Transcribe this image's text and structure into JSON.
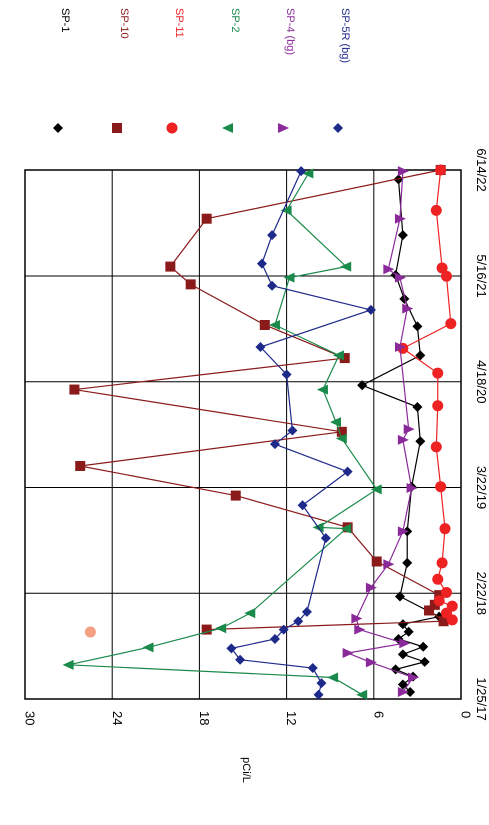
{
  "chart_data": {
    "type": "scatter",
    "orientation": "rotated-90-clockwise",
    "title": "",
    "xlabel": "",
    "ylabel": "pCi/L",
    "ylim": [
      0,
      30
    ],
    "y_ticks": [
      0,
      6,
      12,
      18,
      24,
      30
    ],
    "y_tick_labels": [
      "0",
      "6",
      "12",
      "18",
      "24",
      "30"
    ],
    "x_ticks": [
      "2017-01-25",
      "2018-02-22",
      "2019-03-22",
      "2020-04-18",
      "2021-05-16",
      "2022-06-14"
    ],
    "x_tick_labels": [
      "1/25/17",
      "2/22/18",
      "3/22/19",
      "4/18/20",
      "5/16/21",
      "6/14/22"
    ],
    "xlim": [
      "2017-01-25",
      "2022-06-14"
    ],
    "grid": true,
    "legend_position": "top",
    "series": [
      {
        "name": "SP-1",
        "color": "#000000",
        "marker": "diamond",
        "connected": true,
        "points": [
          [
            "2017-02-20",
            3.5
          ],
          [
            "2017-03-20",
            4.0
          ],
          [
            "2017-04-18",
            3.3
          ],
          [
            "2017-05-15",
            4.5
          ],
          [
            "2017-06-12",
            2.5
          ],
          [
            "2017-07-10",
            4.0
          ],
          [
            "2017-08-07",
            2.6
          ],
          [
            "2017-09-05",
            4.3
          ],
          [
            "2017-10-02",
            3.6
          ],
          [
            "2017-10-30",
            4.0
          ],
          [
            "2017-11-27",
            1.5
          ],
          [
            "2018-02-10",
            4.2
          ],
          [
            "2018-06-15",
            3.7
          ],
          [
            "2018-10-10",
            3.7
          ],
          [
            "2019-03-25",
            3.4
          ],
          [
            "2019-09-10",
            2.8
          ],
          [
            "2020-01-15",
            3.0
          ],
          [
            "2020-04-05",
            6.8
          ],
          [
            "2020-07-25",
            2.8
          ],
          [
            "2020-11-10",
            3.0
          ],
          [
            "2021-02-20",
            3.9
          ],
          [
            "2021-05-20",
            4.5
          ],
          [
            "2021-10-15",
            4.0
          ],
          [
            "2022-05-10",
            4.3
          ]
        ]
      },
      {
        "name": "SP-10",
        "color": "#8b1a1a",
        "marker": "square",
        "connected": true,
        "points": [
          [
            "2017-10-10",
            17.5
          ],
          [
            "2017-11-10",
            1.2
          ],
          [
            "2017-12-20",
            2.2
          ],
          [
            "2018-01-10",
            1.8
          ],
          [
            "2018-02-15",
            1.5
          ],
          [
            "2018-06-20",
            5.8
          ],
          [
            "2018-10-25",
            7.8
          ],
          [
            "2019-02-20",
            15.5
          ],
          [
            "2019-06-10",
            26.2
          ],
          [
            "2019-10-15",
            8.2
          ],
          [
            "2020-03-20",
            26.6
          ],
          [
            "2020-07-15",
            8.0
          ],
          [
            "2020-11-15",
            13.5
          ],
          [
            "2021-04-15",
            18.6
          ],
          [
            "2021-06-20",
            20.0
          ],
          [
            "2021-12-15",
            17.5
          ],
          [
            "2022-06-14",
            1.4
          ]
        ]
      },
      {
        "name": "SP-11",
        "color": "#ee2222",
        "marker": "circle",
        "connected": true,
        "points": [
          [
            "2017-11-15",
            0.6
          ],
          [
            "2017-12-10",
            1.0
          ],
          [
            "2018-01-05",
            0.6
          ],
          [
            "2018-01-25",
            1.5
          ],
          [
            "2018-02-25",
            1.0
          ],
          [
            "2018-04-15",
            1.6
          ],
          [
            "2018-06-15",
            1.3
          ],
          [
            "2018-10-20",
            1.1
          ],
          [
            "2019-03-25",
            1.4
          ],
          [
            "2019-08-20",
            1.7
          ],
          [
            "2020-01-20",
            1.6
          ],
          [
            "2020-05-20",
            1.6
          ],
          [
            "2020-08-20",
            4.0
          ],
          [
            "2020-11-20",
            0.7
          ],
          [
            "2021-05-15",
            1.0
          ],
          [
            "2021-06-15",
            1.3
          ],
          [
            "2022-01-15",
            1.7
          ],
          [
            "2022-06-14",
            1.4
          ]
        ]
      },
      {
        "name": "SP-2",
        "color": "#1a8a4a",
        "marker": "triangle-left",
        "connected": true,
        "points": [
          [
            "2017-02-10",
            6.8
          ],
          [
            "2017-04-15",
            8.8
          ],
          [
            "2017-06-01",
            27.0
          ],
          [
            "2017-08-05",
            21.5
          ],
          [
            "2017-10-15",
            16.5
          ],
          [
            "2017-12-10",
            14.5
          ],
          [
            "2018-10-20",
            7.9
          ],
          [
            "2018-10-25",
            9.8
          ],
          [
            "2019-03-15",
            5.8
          ],
          [
            "2019-09-20",
            8.2
          ],
          [
            "2019-11-20",
            8.6
          ],
          [
            "2020-03-20",
            9.5
          ],
          [
            "2020-07-25",
            8.4
          ],
          [
            "2020-11-15",
            12.8
          ],
          [
            "2021-05-10",
            11.8
          ],
          [
            "2021-06-20",
            7.9
          ],
          [
            "2022-01-15",
            12.0
          ],
          [
            "2022-06-01",
            10.5
          ]
        ]
      },
      {
        "name": "SP-4 (bg)",
        "color": "#8a2a9a",
        "marker": "triangle-right",
        "connected": true,
        "points": [
          [
            "2017-02-20",
            4.0
          ],
          [
            "2017-04-15",
            3.3
          ],
          [
            "2017-06-10",
            6.2
          ],
          [
            "2017-07-15",
            7.8
          ],
          [
            "2017-08-20",
            3.9
          ],
          [
            "2017-10-10",
            7.0
          ],
          [
            "2017-11-20",
            7.2
          ],
          [
            "2018-03-15",
            6.2
          ],
          [
            "2018-06-10",
            5.0
          ],
          [
            "2018-10-10",
            4.0
          ],
          [
            "2019-03-20",
            3.4
          ],
          [
            "2019-09-15",
            4.0
          ],
          [
            "2019-10-25",
            3.6
          ],
          [
            "2020-08-25",
            4.2
          ],
          [
            "2021-01-15",
            3.7
          ],
          [
            "2021-05-10",
            4.2
          ],
          [
            "2021-06-10",
            5.0
          ],
          [
            "2021-12-15",
            4.2
          ],
          [
            "2022-06-10",
            4.0
          ]
        ]
      },
      {
        "name": "SP-5R (bg)",
        "color": "#1e2a8a",
        "marker": "diamond",
        "connected": true,
        "points": [
          [
            "2017-02-10",
            9.8
          ],
          [
            "2017-03-25",
            9.6
          ],
          [
            "2017-05-20",
            10.2
          ],
          [
            "2017-06-20",
            15.2
          ],
          [
            "2017-08-01",
            15.8
          ],
          [
            "2017-09-05",
            12.8
          ],
          [
            "2017-10-10",
            12.2
          ],
          [
            "2017-11-10",
            11.2
          ],
          [
            "2017-12-15",
            10.6
          ],
          [
            "2018-09-15",
            9.3
          ],
          [
            "2019-01-15",
            10.9
          ],
          [
            "2019-05-20",
            7.8
          ],
          [
            "2019-08-30",
            12.8
          ],
          [
            "2019-10-20",
            11.6
          ],
          [
            "2020-05-15",
            12.0
          ],
          [
            "2020-08-25",
            13.8
          ],
          [
            "2021-01-10",
            6.2
          ],
          [
            "2021-04-10",
            13.0
          ],
          [
            "2021-07-01",
            13.7
          ],
          [
            "2021-10-15",
            13.0
          ],
          [
            "2022-06-10",
            11.0
          ]
        ]
      }
    ],
    "annotations": [
      {
        "kind": "outlier-point",
        "series": "SP-11",
        "date": "2017-10-01",
        "value": 25.5,
        "color": "#f5a080"
      }
    ]
  }
}
